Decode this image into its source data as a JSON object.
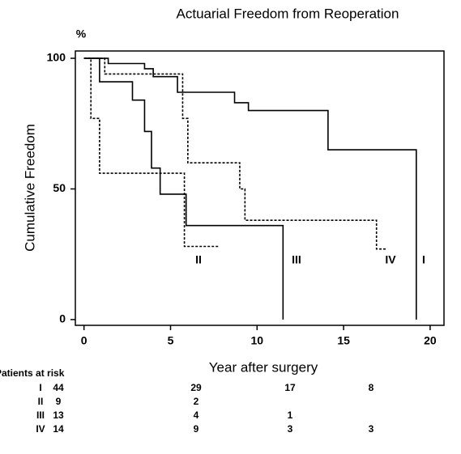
{
  "chart_data": {
    "type": "line",
    "title": "Actuarial Freedom from Reoperation",
    "y_unit": "%",
    "y_label": "Cumulative Freedom",
    "x_label": "Year after surgery",
    "xlim": [
      -0.5,
      20.8
    ],
    "xticks": [
      0,
      5,
      10,
      15,
      20
    ],
    "ylim": [
      -2.2,
      102.8
    ],
    "yticks": [
      0,
      50,
      100
    ],
    "series": [
      {
        "name": "I",
        "color": "#000000",
        "style": "solid",
        "x": [
          0,
          1.4,
          1.4,
          3.5,
          3.5,
          4,
          4,
          5.4,
          5.4,
          8.7,
          8.7,
          9.5,
          9.5,
          14.1,
          14.1,
          19.2,
          19.2
        ],
        "values": [
          100,
          100,
          98,
          98,
          96,
          96,
          93,
          93,
          87,
          87,
          83,
          83,
          80,
          80,
          65,
          65,
          0
        ]
      },
      {
        "name": "II",
        "color": "#000000",
        "style": "dotted",
        "x": [
          0,
          0.4,
          0.4,
          0.9,
          0.9,
          5.8,
          5.8,
          7.8
        ],
        "values": [
          100,
          100,
          77,
          77,
          56,
          56,
          28,
          28
        ]
      },
      {
        "name": "III",
        "color": "#000000",
        "style": "solid",
        "x": [
          0,
          0.9,
          0.9,
          2.8,
          2.8,
          3.5,
          3.5,
          3.9,
          3.9,
          4.4,
          4.4,
          5.9,
          5.9,
          11.5,
          11.5
        ],
        "values": [
          100,
          100,
          91,
          91,
          84,
          84,
          72,
          72,
          58,
          58,
          48,
          48,
          36,
          36,
          0
        ]
      },
      {
        "name": "IV",
        "color": "#000000",
        "style": "dotted",
        "x": [
          0,
          1.2,
          1.2,
          5.7,
          5.7,
          6,
          6,
          9,
          9,
          9.3,
          9.3,
          16.9,
          16.9,
          17.5
        ],
        "values": [
          100,
          100,
          94,
          94,
          77,
          77,
          60,
          60,
          50,
          50,
          38,
          38,
          27,
          27
        ]
      }
    ]
  },
  "risk_table": {
    "title": "Patients at risk",
    "rows": [
      {
        "label": "I",
        "counts": [
          "44",
          "29",
          "17",
          "8"
        ]
      },
      {
        "label": "II",
        "counts": [
          "9",
          "2"
        ]
      },
      {
        "label": "III",
        "counts": [
          "13",
          "4",
          "1"
        ]
      },
      {
        "label": "IV",
        "counts": [
          "14",
          "9",
          "3",
          "3"
        ]
      }
    ]
  }
}
